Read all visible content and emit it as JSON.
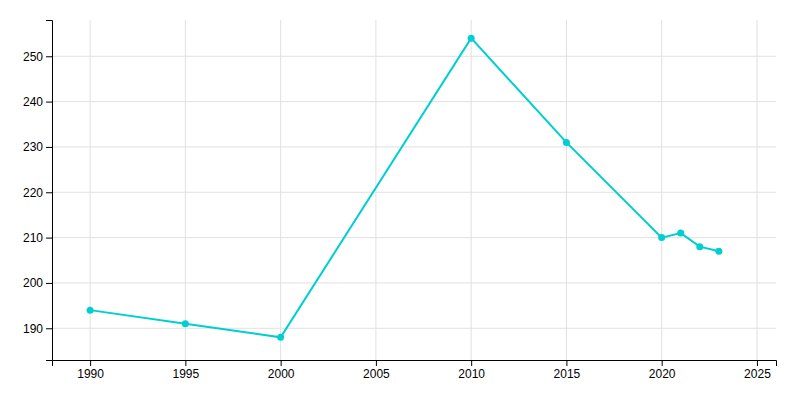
{
  "chart_data": {
    "type": "line",
    "x": [
      1990,
      1995,
      2000,
      2010,
      2015,
      2020,
      2021,
      2022,
      2023
    ],
    "values": [
      194,
      191,
      188,
      254,
      231,
      210,
      211,
      208,
      207
    ],
    "color": "#00CED1",
    "xlim": [
      1988,
      2026
    ],
    "ylim": [
      183,
      258
    ],
    "xticks": [
      1990,
      1995,
      2000,
      2005,
      2010,
      2015,
      2020,
      2025
    ],
    "yticks": [
      190,
      200,
      210,
      220,
      230,
      240,
      250
    ],
    "grid": true,
    "marker": "circle"
  }
}
